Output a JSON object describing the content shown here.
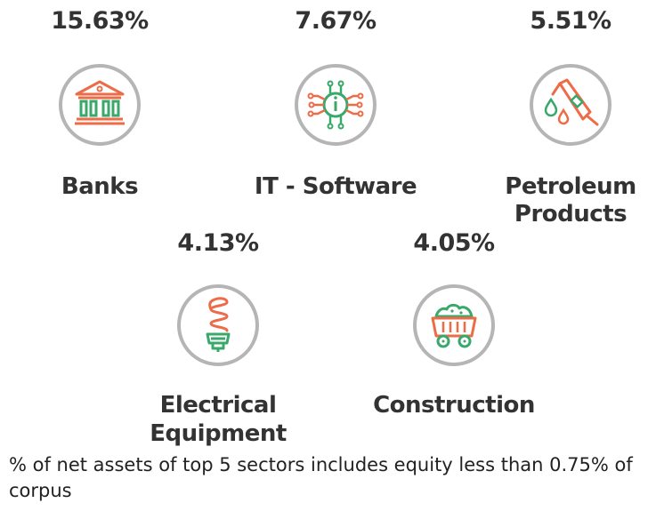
{
  "sectors": [
    {
      "name": "Banks",
      "percent": "15.63%",
      "icon": "bank-icon"
    },
    {
      "name": "IT - Software",
      "percent": "7.67%",
      "icon": "chip-icon"
    },
    {
      "name_line1": "Petroleum",
      "name_line2": "Products",
      "percent": "5.51%",
      "icon": "fuel-nozzle-icon"
    },
    {
      "name_line1": "Electrical",
      "name_line2": "Equipment",
      "percent": "4.13%",
      "icon": "bulb-icon"
    },
    {
      "name": "Construction",
      "percent": "4.05%",
      "icon": "cart-icon"
    }
  ],
  "footnote": "% of net assets of top 5 sectors includes equity less than 0.75% of corpus",
  "colors": {
    "accent": "#ee6b47",
    "green": "#3aa86b",
    "ring": "#b5b5b5",
    "text": "#333333"
  }
}
